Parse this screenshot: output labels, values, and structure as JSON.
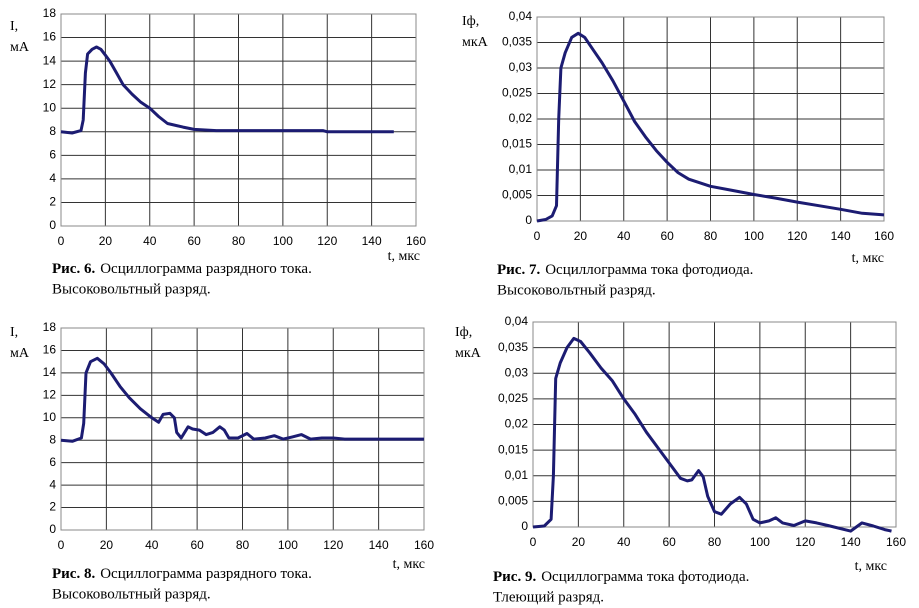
{
  "chart_data": [
    {
      "type": "line",
      "ylabel": [
        "I,",
        "мА"
      ],
      "xlabel": "t, мкс",
      "caption_bold": "Рис. 6.",
      "caption": "Осциллограмма разрядного тока.",
      "caption_line2": "Высоковольтный разряд.",
      "xlim": [
        0,
        160
      ],
      "xticks": [
        0,
        20,
        40,
        60,
        80,
        100,
        120,
        140,
        160
      ],
      "ylim": [
        0,
        18
      ],
      "yticks": [
        0,
        2,
        4,
        6,
        8,
        10,
        12,
        14,
        16,
        18
      ],
      "grid": true,
      "series": [
        {
          "color": "#1c1c72",
          "x": [
            0,
            5,
            9,
            10,
            11,
            12,
            14,
            16,
            18,
            20,
            22,
            25,
            28,
            32,
            36,
            40,
            44,
            48,
            55,
            60,
            70,
            100,
            118,
            120,
            150
          ],
          "values": [
            8,
            7.9,
            8.1,
            9,
            13,
            14.6,
            15,
            15.2,
            15,
            14.5,
            14,
            13,
            12,
            11.2,
            10.5,
            10,
            9.3,
            8.7,
            8.4,
            8.2,
            8.1,
            8.1,
            8.1,
            8,
            8
          ]
        }
      ]
    },
    {
      "type": "line",
      "ylabel": [
        "Iф,",
        "мкА"
      ],
      "xlabel": "t, мкс",
      "caption_bold": "Рис. 7.",
      "caption": "Осциллограмма  тока фотодиода.",
      "caption_line2": "Высоковольтный разряд.",
      "xlim": [
        0,
        160
      ],
      "xticks": [
        0,
        20,
        40,
        60,
        80,
        100,
        120,
        140,
        160
      ],
      "ylim": [
        0,
        0.04
      ],
      "yticks": [
        0,
        {
          "value": 0.005,
          "label": "0,005"
        },
        {
          "value": 0.01,
          "label": "0,01"
        },
        {
          "value": 0.015,
          "label": "0,015"
        },
        {
          "value": 0.02,
          "label": "0,02"
        },
        {
          "value": 0.025,
          "label": "0,025"
        },
        {
          "value": 0.03,
          "label": "0,03"
        },
        {
          "value": 0.035,
          "label": "0,035"
        },
        {
          "value": 0.04,
          "label": "0,04"
        }
      ],
      "grid": true,
      "series": [
        {
          "color": "#1c1c72",
          "x": [
            0,
            4,
            7,
            9,
            10,
            11,
            13,
            16,
            19,
            22,
            26,
            30,
            35,
            40,
            45,
            50,
            55,
            60,
            65,
            70,
            80,
            90,
            100,
            110,
            120,
            130,
            140,
            150,
            160
          ],
          "values": [
            0,
            0.0003,
            0.001,
            0.003,
            0.02,
            0.03,
            0.033,
            0.036,
            0.0368,
            0.036,
            0.0335,
            0.031,
            0.0275,
            0.0235,
            0.0195,
            0.0165,
            0.0138,
            0.0115,
            0.0095,
            0.0082,
            0.0068,
            0.006,
            0.0052,
            0.0045,
            0.0037,
            0.003,
            0.0023,
            0.0015,
            0.0012
          ]
        }
      ]
    },
    {
      "type": "line",
      "ylabel": [
        "I,",
        "мА"
      ],
      "xlabel": "t, мкс",
      "caption_bold": "Рис. 8.",
      "caption": "Осциллограмма разрядного тока.",
      "caption_line2": "Высоковольтный разряд.",
      "xlim": [
        0,
        160
      ],
      "xticks": [
        0,
        20,
        40,
        60,
        80,
        100,
        120,
        140,
        160
      ],
      "ylim": [
        0,
        18
      ],
      "yticks": [
        0,
        2,
        4,
        6,
        8,
        10,
        12,
        14,
        16,
        18
      ],
      "grid": true,
      "series": [
        {
          "color": "#1c1c72",
          "x": [
            0,
            5,
            9,
            10,
            11,
            13,
            16,
            19,
            22,
            26,
            30,
            35,
            40,
            43,
            45,
            48,
            50,
            51,
            53,
            56,
            58,
            61,
            64,
            67,
            70,
            72,
            74,
            78,
            82,
            85,
            90,
            94,
            98,
            102,
            106,
            110,
            115,
            120,
            125,
            160
          ],
          "values": [
            8,
            7.9,
            8.2,
            9.5,
            14,
            15,
            15.3,
            14.8,
            14,
            12.8,
            11.8,
            10.8,
            10,
            9.6,
            10.3,
            10.4,
            10,
            8.7,
            8.2,
            9.2,
            9,
            8.9,
            8.5,
            8.7,
            9.2,
            8.9,
            8.2,
            8.2,
            8.6,
            8.1,
            8.2,
            8.4,
            8.1,
            8.3,
            8.5,
            8.1,
            8.2,
            8.2,
            8.1,
            8.1
          ]
        }
      ]
    },
    {
      "type": "line",
      "ylabel": [
        "Iф,",
        "мкА"
      ],
      "xlabel": "t, мкс",
      "caption_bold": "Рис. 9.",
      "caption": "Осциллограмма  тока фотодиода.",
      "caption_line2": "Тлеющий  разряд.",
      "xlim": [
        0,
        160
      ],
      "xticks": [
        0,
        20,
        40,
        60,
        80,
        100,
        120,
        140,
        160
      ],
      "ylim": [
        0,
        0.04
      ],
      "yticks": [
        0,
        {
          "value": 0.005,
          "label": "0,005"
        },
        {
          "value": 0.01,
          "label": "0,01"
        },
        {
          "value": 0.015,
          "label": "0,015"
        },
        {
          "value": 0.02,
          "label": "0,02"
        },
        {
          "value": 0.025,
          "label": "0,025"
        },
        {
          "value": 0.03,
          "label": "0,03"
        },
        {
          "value": 0.035,
          "label": "0,035"
        },
        {
          "value": 0.04,
          "label": "0,04"
        }
      ],
      "grid": true,
      "series": [
        {
          "color": "#1c1c72",
          "x": [
            0,
            5,
            8,
            9,
            10,
            12,
            15,
            18,
            21,
            25,
            30,
            35,
            40,
            45,
            50,
            55,
            60,
            65,
            68,
            70,
            73,
            75,
            77,
            80,
            83,
            87,
            91,
            94,
            97,
            100,
            104,
            107,
            110,
            115,
            120,
            125,
            130,
            140,
            145,
            150,
            155,
            158
          ],
          "values": [
            0,
            0.0002,
            0.0015,
            0.01,
            0.029,
            0.032,
            0.035,
            0.0368,
            0.0362,
            0.034,
            0.031,
            0.0285,
            0.025,
            0.022,
            0.0185,
            0.0155,
            0.0125,
            0.0095,
            0.009,
            0.0092,
            0.011,
            0.0098,
            0.006,
            0.003,
            0.0025,
            0.0045,
            0.0058,
            0.0045,
            0.0015,
            0.0008,
            0.0012,
            0.0018,
            0.0008,
            0.0003,
            0.0012,
            0.0008,
            0.0003,
            -0.0008,
            0.0008,
            0.0002,
            -0.0005,
            -0.0008
          ]
        }
      ]
    }
  ]
}
